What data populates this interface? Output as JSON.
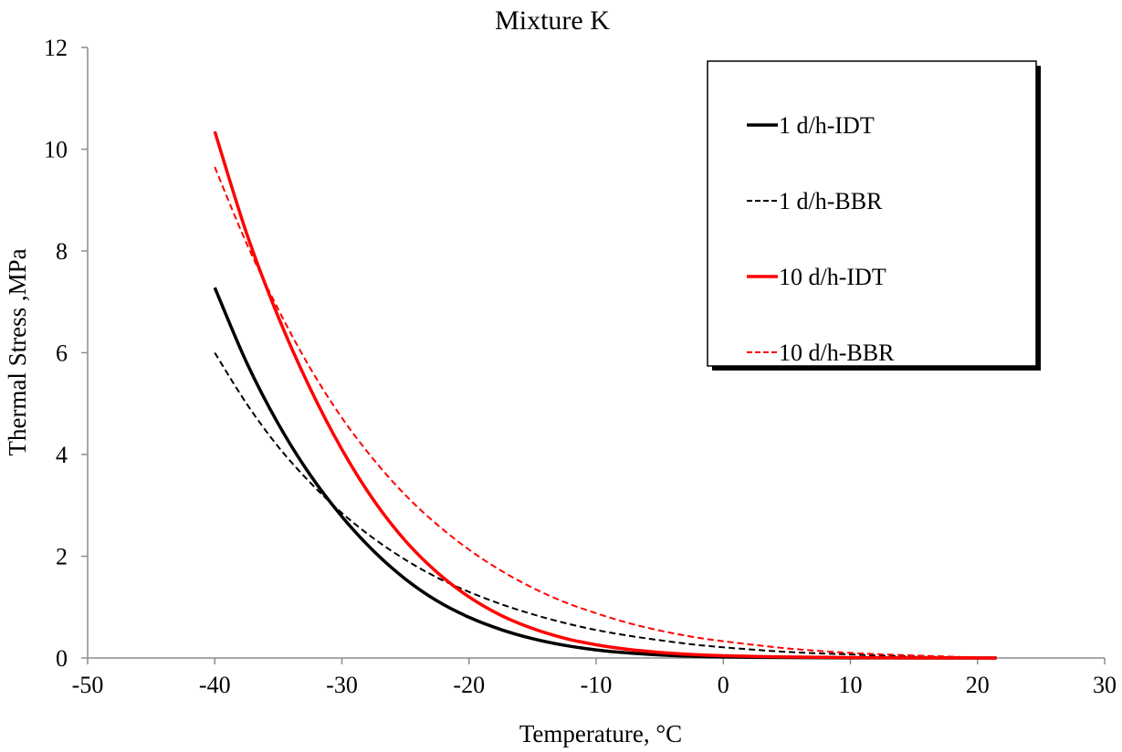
{
  "chart_data": {
    "type": "line",
    "title": "Mixture K",
    "xlabel": "Temperature, °C",
    "ylabel": "Thermal Stress ,MPa",
    "xlim": [
      -50,
      30
    ],
    "ylim": [
      0,
      12
    ],
    "xticks": [
      -50,
      -40,
      -30,
      -20,
      -10,
      0,
      10,
      20,
      30
    ],
    "yticks": [
      0,
      2,
      4,
      6,
      8,
      10,
      12
    ],
    "xtick_labels": [
      "-50",
      "-40",
      "-30",
      "-20",
      "-10",
      "0",
      "10",
      "20",
      "30"
    ],
    "ytick_labels": [
      "0",
      "2",
      "4",
      "6",
      "8",
      "10",
      "12"
    ],
    "grid": false,
    "legend_position": "top-right",
    "series": [
      {
        "name": "1 d/h-IDT",
        "color": "#000000",
        "dash": "solid",
        "x": [
          -40,
          -37.5,
          -35,
          -32.5,
          -30,
          -27.5,
          -25,
          -22.5,
          -20,
          -17.5,
          -15,
          -12.5,
          -10,
          -7.5,
          -5,
          -2.5,
          0,
          5,
          10,
          15,
          21.5
        ],
        "y": [
          7.28,
          5.81,
          4.6,
          3.6,
          2.78,
          2.1,
          1.55,
          1.12,
          0.8,
          0.56,
          0.38,
          0.25,
          0.16,
          0.1,
          0.06,
          0.035,
          0.02,
          0.008,
          0.003,
          0.001,
          0
        ]
      },
      {
        "name": "1 d/h-BBR",
        "color": "#000000",
        "dash": "dashed",
        "x": [
          -40,
          -37.5,
          -35,
          -32.5,
          -30,
          -27.5,
          -25,
          -22.5,
          -20,
          -17.5,
          -15,
          -12.5,
          -10,
          -7.5,
          -5,
          -2.5,
          0,
          5,
          10,
          15,
          21.5
        ],
        "y": [
          6.0,
          5.0,
          4.15,
          3.45,
          2.85,
          2.35,
          1.93,
          1.58,
          1.3,
          1.06,
          0.86,
          0.69,
          0.55,
          0.44,
          0.35,
          0.27,
          0.21,
          0.12,
          0.07,
          0.03,
          0
        ]
      },
      {
        "name": "10 d/h-IDT",
        "color": "#ff0000",
        "dash": "solid",
        "x": [
          -40,
          -37.5,
          -35,
          -32.5,
          -30,
          -27.5,
          -25,
          -22.5,
          -20,
          -17.5,
          -15,
          -12.5,
          -10,
          -7.5,
          -5,
          -2.5,
          0,
          5,
          10,
          15,
          21.5
        ],
        "y": [
          10.35,
          8.35,
          6.7,
          5.3,
          4.1,
          3.1,
          2.3,
          1.68,
          1.2,
          0.84,
          0.58,
          0.39,
          0.26,
          0.17,
          0.11,
          0.07,
          0.045,
          0.02,
          0.008,
          0.003,
          0
        ]
      },
      {
        "name": "10 d/h-BBR",
        "color": "#ff0000",
        "dash": "dashed",
        "x": [
          -40,
          -37.5,
          -35,
          -32.5,
          -30,
          -27.5,
          -25,
          -22.5,
          -20,
          -17.5,
          -15,
          -12.5,
          -10,
          -7.5,
          -5,
          -2.5,
          0,
          5,
          10,
          15,
          21.5
        ],
        "y": [
          9.65,
          8.15,
          6.85,
          5.7,
          4.72,
          3.9,
          3.2,
          2.62,
          2.13,
          1.72,
          1.38,
          1.1,
          0.88,
          0.69,
          0.54,
          0.42,
          0.33,
          0.19,
          0.1,
          0.05,
          0
        ]
      }
    ]
  }
}
